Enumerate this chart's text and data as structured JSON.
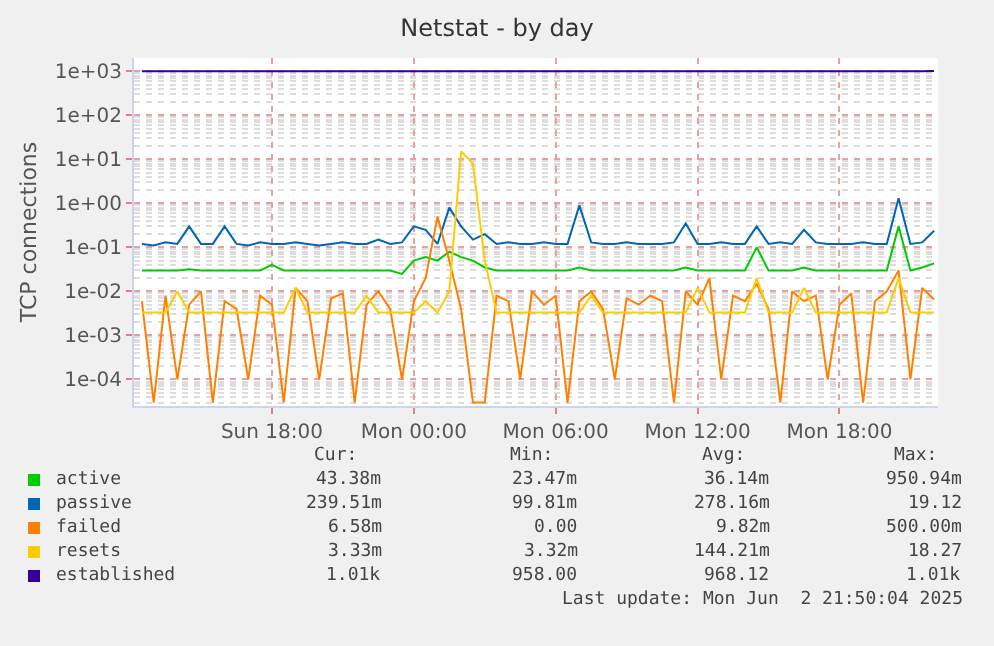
{
  "chart_data": {
    "type": "line",
    "title": "Netstat - by day",
    "ylabel": "TCP connections",
    "x": [
      "2025-06-01T12:30",
      "2025-06-01T13:00",
      "2025-06-01T13:30",
      "2025-06-01T14:00",
      "2025-06-01T14:30",
      "2025-06-01T15:00",
      "2025-06-01T15:30",
      "2025-06-01T16:00",
      "2025-06-01T16:30",
      "2025-06-01T17:00",
      "2025-06-01T17:30",
      "2025-06-01T18:00",
      "2025-06-01T18:30",
      "2025-06-01T19:00",
      "2025-06-01T19:30",
      "2025-06-01T20:00",
      "2025-06-01T20:30",
      "2025-06-01T21:00",
      "2025-06-01T21:30",
      "2025-06-01T22:00",
      "2025-06-01T22:30",
      "2025-06-01T23:00",
      "2025-06-01T23:30",
      "2025-06-02T00:00",
      "2025-06-02T00:30",
      "2025-06-02T01:00",
      "2025-06-02T01:30",
      "2025-06-02T02:00",
      "2025-06-02T02:30",
      "2025-06-02T03:00",
      "2025-06-02T03:30",
      "2025-06-02T04:00",
      "2025-06-02T04:30",
      "2025-06-02T05:00",
      "2025-06-02T05:30",
      "2025-06-02T06:00",
      "2025-06-02T06:30",
      "2025-06-02T07:00",
      "2025-06-02T07:30",
      "2025-06-02T08:00",
      "2025-06-02T08:30",
      "2025-06-02T09:00",
      "2025-06-02T09:30",
      "2025-06-02T10:00",
      "2025-06-02T10:30",
      "2025-06-02T11:00",
      "2025-06-02T11:30",
      "2025-06-02T12:00",
      "2025-06-02T12:30",
      "2025-06-02T13:00",
      "2025-06-02T13:30",
      "2025-06-02T14:00",
      "2025-06-02T14:30",
      "2025-06-02T15:00",
      "2025-06-02T15:30",
      "2025-06-02T16:00",
      "2025-06-02T16:30",
      "2025-06-02T17:00",
      "2025-06-02T17:30",
      "2025-06-02T18:00",
      "2025-06-02T18:30",
      "2025-06-02T19:00",
      "2025-06-02T19:30",
      "2025-06-02T20:00",
      "2025-06-02T20:30",
      "2025-06-02T21:00",
      "2025-06-02T21:30",
      "2025-06-02T22:00"
    ],
    "series": [
      {
        "name": "active",
        "color": "#00cc00",
        "values": [
          0.03,
          0.03,
          0.03,
          0.03,
          0.032,
          0.03,
          0.03,
          0.03,
          0.03,
          0.03,
          0.03,
          0.04,
          0.03,
          0.03,
          0.03,
          0.03,
          0.03,
          0.03,
          0.03,
          0.03,
          0.03,
          0.03,
          0.025,
          0.05,
          0.06,
          0.05,
          0.08,
          0.06,
          0.05,
          0.035,
          0.03,
          0.03,
          0.03,
          0.03,
          0.03,
          0.03,
          0.03,
          0.035,
          0.03,
          0.03,
          0.03,
          0.03,
          0.03,
          0.03,
          0.03,
          0.03,
          0.035,
          0.03,
          0.03,
          0.03,
          0.03,
          0.03,
          0.1,
          0.03,
          0.03,
          0.03,
          0.035,
          0.03,
          0.03,
          0.03,
          0.03,
          0.03,
          0.03,
          0.03,
          0.3,
          0.03,
          0.035,
          0.04338
        ]
      },
      {
        "name": "passive",
        "color": "#0066b3",
        "values": [
          0.12,
          0.11,
          0.13,
          0.12,
          0.3,
          0.12,
          0.12,
          0.3,
          0.12,
          0.11,
          0.13,
          0.12,
          0.12,
          0.13,
          0.12,
          0.11,
          0.12,
          0.13,
          0.12,
          0.12,
          0.15,
          0.12,
          0.13,
          0.3,
          0.25,
          0.12,
          0.8,
          0.3,
          0.15,
          0.2,
          0.12,
          0.13,
          0.12,
          0.12,
          0.13,
          0.12,
          0.12,
          0.9,
          0.13,
          0.12,
          0.12,
          0.13,
          0.12,
          0.12,
          0.12,
          0.13,
          0.35,
          0.12,
          0.12,
          0.13,
          0.12,
          0.12,
          0.3,
          0.12,
          0.13,
          0.12,
          0.25,
          0.13,
          0.12,
          0.12,
          0.12,
          0.13,
          0.12,
          0.12,
          1.3,
          0.12,
          0.13,
          0.2395
        ]
      },
      {
        "name": "failed",
        "color": "#ff8000",
        "values": [
          0.006,
          3e-05,
          0.008,
          0.0001,
          0.005,
          0.01,
          3e-05,
          0.006,
          0.004,
          0.0001,
          0.008,
          0.005,
          3e-05,
          0.012,
          0.006,
          0.0001,
          0.007,
          0.009,
          3e-05,
          0.005,
          0.01,
          0.004,
          0.0001,
          0.006,
          0.02,
          0.5,
          0.05,
          0.004,
          3e-05,
          3e-05,
          0.008,
          0.006,
          0.0001,
          0.01,
          0.005,
          0.008,
          3e-05,
          0.006,
          0.01,
          0.004,
          0.0001,
          0.007,
          0.005,
          0.008,
          0.006,
          3e-05,
          0.01,
          0.005,
          0.02,
          0.0001,
          0.008,
          0.006,
          0.015,
          0.004,
          3e-05,
          0.01,
          0.006,
          0.008,
          0.0001,
          0.005,
          0.009,
          3e-05,
          0.006,
          0.01,
          0.03,
          0.0001,
          0.012,
          0.00658
        ]
      },
      {
        "name": "resets",
        "color": "#ffcc00",
        "values": [
          0.0033,
          0.0033,
          0.0033,
          0.01,
          0.0033,
          0.0033,
          0.0033,
          0.0033,
          0.0033,
          0.0033,
          0.0033,
          0.0033,
          0.0033,
          0.012,
          0.0033,
          0.0033,
          0.0033,
          0.0033,
          0.0033,
          0.008,
          0.0033,
          0.0033,
          0.0033,
          0.0033,
          0.006,
          0.0033,
          0.01,
          15,
          8,
          0.05,
          0.0033,
          0.0033,
          0.0033,
          0.0033,
          0.0033,
          0.0033,
          0.0033,
          0.0033,
          0.008,
          0.0033,
          0.0033,
          0.0033,
          0.0033,
          0.0033,
          0.0033,
          0.0033,
          0.0033,
          0.012,
          0.0033,
          0.0033,
          0.0033,
          0.0033,
          0.02,
          0.0033,
          0.0033,
          0.0033,
          0.012,
          0.0033,
          0.0033,
          0.0033,
          0.0033,
          0.0033,
          0.0033,
          0.0033,
          0.02,
          0.0033,
          0.0033,
          0.00333
        ]
      },
      {
        "name": "established",
        "color": "#330099",
        "values": [
          1000,
          1000,
          1000,
          1000,
          1000,
          1000,
          1000,
          1000,
          1000,
          1000,
          1000,
          1000,
          1000,
          1000,
          1000,
          1000,
          1000,
          1000,
          1000,
          1000,
          1000,
          1000,
          1000,
          1000,
          1000,
          1000,
          1000,
          1000,
          1000,
          1000,
          1000,
          1000,
          1000,
          1000,
          1000,
          1000,
          1000,
          1000,
          1000,
          1000,
          1000,
          1000,
          1000,
          1000,
          1000,
          1000,
          1000,
          1000,
          1000,
          1000,
          1000,
          1000,
          1000,
          1000,
          1000,
          1000,
          1000,
          1000,
          1000,
          1000,
          1000,
          1000,
          1000,
          1000,
          1000,
          1000,
          1000,
          1010
        ]
      }
    ],
    "log": "y",
    "grid": true,
    "legend": "bottom",
    "marker": "none",
    "line_style": "solid",
    "xlim": [
      "2025-06-01T12:10",
      "2025-06-02T22:10"
    ],
    "xticks": [
      {
        "value": "2025-06-01T18:00",
        "label": "Sun 18:00"
      },
      {
        "value": "2025-06-02T00:00",
        "label": "Mon 00:00"
      },
      {
        "value": "2025-06-02T06:00",
        "label": "Mon 06:00"
      },
      {
        "value": "2025-06-02T12:00",
        "label": "Mon 12:00"
      },
      {
        "value": "2025-06-02T18:00",
        "label": "Mon 18:00"
      }
    ],
    "ylim": [
      2.5e-05,
      2000
    ],
    "yticks": [
      {
        "value": 0.0001,
        "label": "1e-04"
      },
      {
        "value": 0.001,
        "label": "1e-03"
      },
      {
        "value": 0.01,
        "label": "1e-02"
      },
      {
        "value": 0.1,
        "label": "1e-01"
      },
      {
        "value": 1,
        "label": "1e+00"
      },
      {
        "value": 10,
        "label": "1e+01"
      },
      {
        "value": 100,
        "label": "1e+02"
      },
      {
        "value": 1000,
        "label": "1e+03"
      }
    ],
    "annotations": [
      "Cur:",
      "Min:",
      "Avg:",
      "Max:",
      "43.38m",
      "23.47m",
      "36.14m",
      "950.94m",
      "239.51m",
      "99.81m",
      "278.16m",
      "19.12",
      "6.58m",
      "0.00",
      "9.82m",
      "500.00m",
      "3.33m",
      "3.32m",
      "144.21m",
      "18.27",
      "1.01k",
      "958.00",
      "968.12",
      "1.01k",
      "Last update: Mon Jun  2 21:50:04 2025"
    ]
  }
}
